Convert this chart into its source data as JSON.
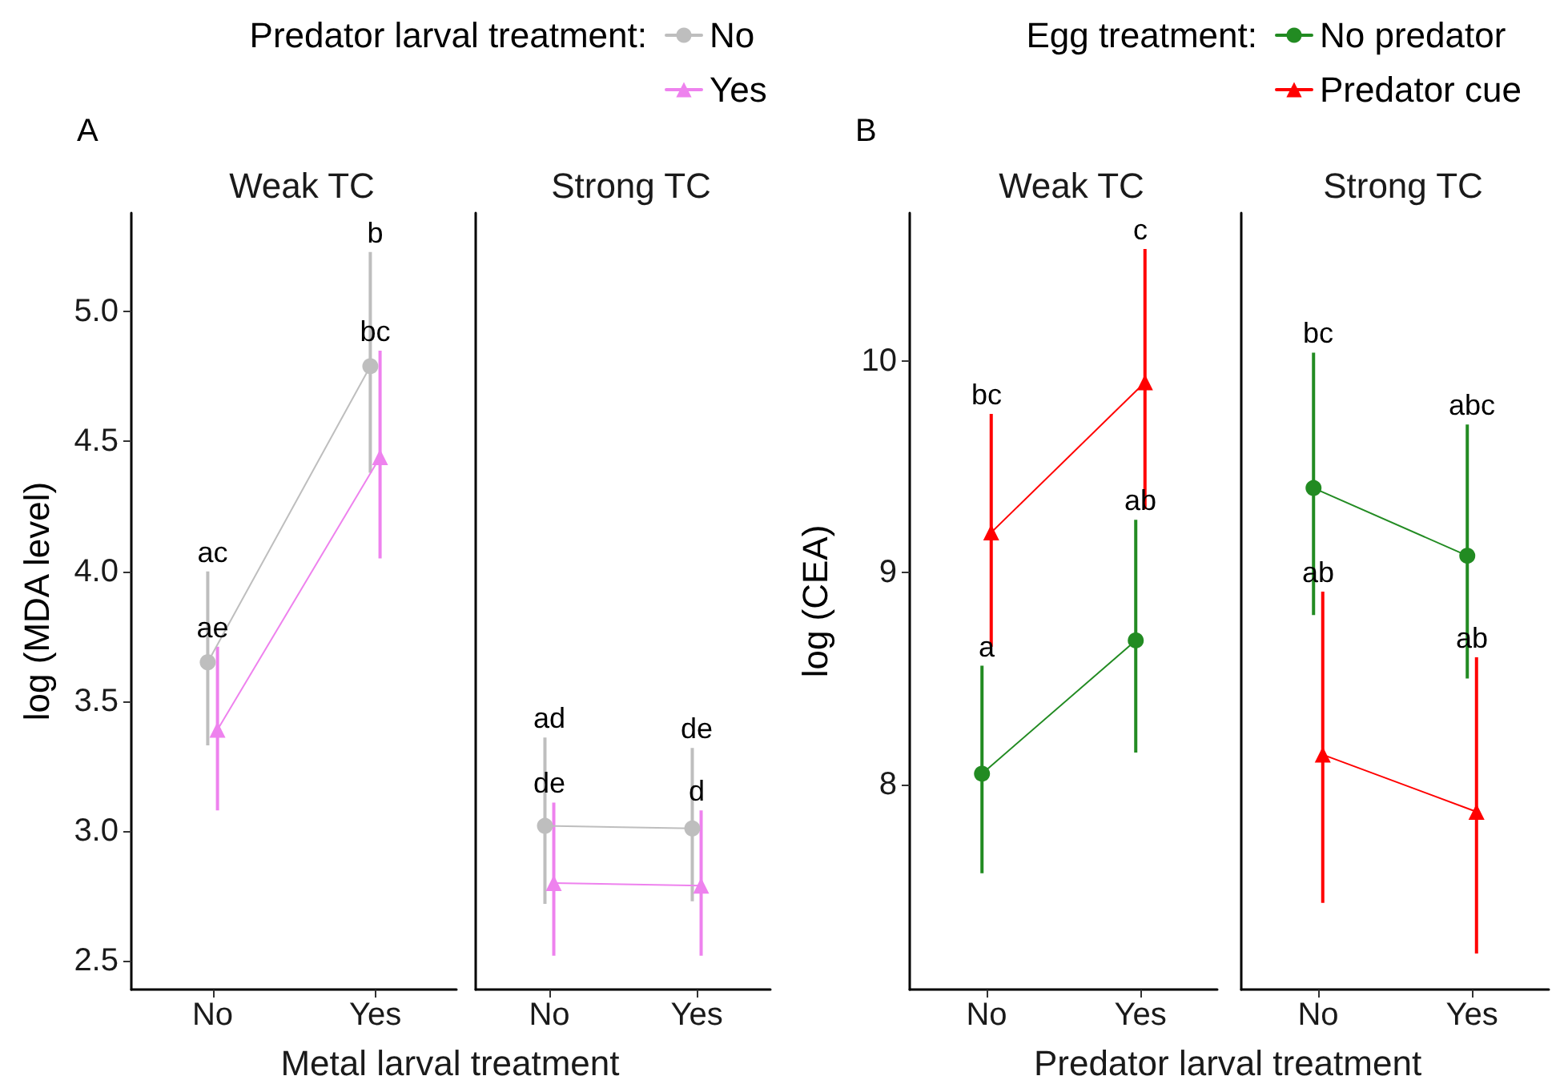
{
  "chart_data": [
    {
      "type": "line",
      "title": "Weak TC",
      "ylabel": "log (MDA level)",
      "xlabel": "Metal larval treatment",
      "legend_title": "Predator larval treatment:",
      "legend": "top right",
      "categories": [
        "No",
        "Yes"
      ],
      "ylim": [
        2.39,
        5.38
      ],
      "yticks": [
        {
          "value": 2.5,
          "label": "2.5"
        },
        {
          "value": 3,
          "label": "3.0"
        },
        {
          "value": 3.5,
          "label": "3.5"
        },
        {
          "value": 4,
          "label": "4.0"
        },
        {
          "value": 4.5,
          "label": "4.5"
        },
        {
          "value": 5,
          "label": "5.0"
        }
      ],
      "annotations": [
        "A",
        {
          "text": "ac",
          "x": "No",
          "y": 4.0
        },
        {
          "text": "ae",
          "x": "No",
          "y": 3.71
        },
        {
          "text": "b",
          "x": "Yes",
          "y": 5.23
        },
        {
          "text": "bc",
          "x": "Yes",
          "y": 4.85
        }
      ],
      "series": [
        {
          "name": "No",
          "color": "#bebebe",
          "marker": "circle",
          "values": [
            3.65,
            4.79
          ],
          "errors": [
            [
              3.33,
              4.0
            ],
            [
              4.38,
              5.23
            ]
          ]
        },
        {
          "name": "Yes",
          "color": "#ee82ee",
          "marker": "triangle",
          "values": [
            3.39,
            4.44
          ],
          "errors": [
            [
              3.08,
              3.71
            ],
            [
              4.05,
              4.85
            ]
          ]
        }
      ]
    },
    {
      "type": "line",
      "title": "Strong TC",
      "categories": [
        "No",
        "Yes"
      ],
      "ylim": [
        2.39,
        5.38
      ],
      "tick_labels": "x",
      "annotations": [
        {
          "text": "ad",
          "x": "No",
          "y": 3.36
        },
        {
          "text": "de",
          "x": "No",
          "y": 3.11
        },
        {
          "text": "de",
          "x": "Yes",
          "y": 3.32
        },
        {
          "text": "d",
          "x": "Yes",
          "y": 3.08
        }
      ],
      "series": [
        {
          "color": "#bebebe",
          "marker": "circle",
          "values": [
            3.02,
            3.01
          ],
          "errors": [
            [
              2.72,
              3.36
            ],
            [
              2.73,
              3.32
            ]
          ]
        },
        {
          "color": "#ee82ee",
          "marker": "triangle",
          "values": [
            2.8,
            2.79
          ],
          "errors": [
            [
              2.52,
              3.11
            ],
            [
              2.52,
              3.08
            ]
          ]
        }
      ]
    },
    {
      "type": "line",
      "title": "Weak TC",
      "ylabel": "log (CEA)",
      "xlabel": "Predator larval treatment",
      "legend_title": "Egg treatment:",
      "legend": "top right",
      "categories": [
        "No",
        "Yes"
      ],
      "ylim": [
        7.03,
        10.7
      ],
      "yticks": [
        8,
        9,
        10
      ],
      "annotations": [
        "B",
        {
          "text": "a",
          "x": "No",
          "y": 8.56
        },
        {
          "text": "bc",
          "x": "No",
          "y": 9.75
        },
        {
          "text": "ab",
          "x": "Yes",
          "y": 9.25
        },
        {
          "text": "c",
          "x": "Yes",
          "y": 10.53
        }
      ],
      "series": [
        {
          "name": "No predator",
          "color": "#228b22",
          "marker": "circle",
          "values": [
            8.05,
            8.68
          ],
          "errors": [
            [
              7.58,
              8.56
            ],
            [
              8.15,
              9.25
            ]
          ]
        },
        {
          "name": "Predator cue",
          "color": "#ff0000",
          "marker": "triangle",
          "values": [
            9.19,
            9.9
          ],
          "errors": [
            [
              8.65,
              9.75
            ],
            [
              9.3,
              10.53
            ]
          ]
        }
      ]
    },
    {
      "type": "line",
      "title": "Strong TC",
      "categories": [
        "No",
        "Yes"
      ],
      "ylim": [
        7.03,
        10.7
      ],
      "tick_labels": "x",
      "annotations": [
        {
          "text": "bc",
          "x": "No",
          "y": 10.04
        },
        {
          "text": "ab",
          "x": "No",
          "y": 8.91
        },
        {
          "text": "abc",
          "x": "Yes",
          "y": 9.7
        },
        {
          "text": "ab",
          "x": "Yes",
          "y": 8.6
        }
      ],
      "series": [
        {
          "color": "#228b22",
          "marker": "circle",
          "values": [
            9.4,
            9.08
          ],
          "errors": [
            [
              8.8,
              10.04
            ],
            [
              8.5,
              9.7
            ]
          ]
        },
        {
          "color": "#ff0000",
          "marker": "triangle",
          "values": [
            8.14,
            7.87
          ],
          "errors": [
            [
              7.44,
              8.91
            ],
            [
              7.2,
              8.6
            ]
          ]
        }
      ]
    }
  ]
}
